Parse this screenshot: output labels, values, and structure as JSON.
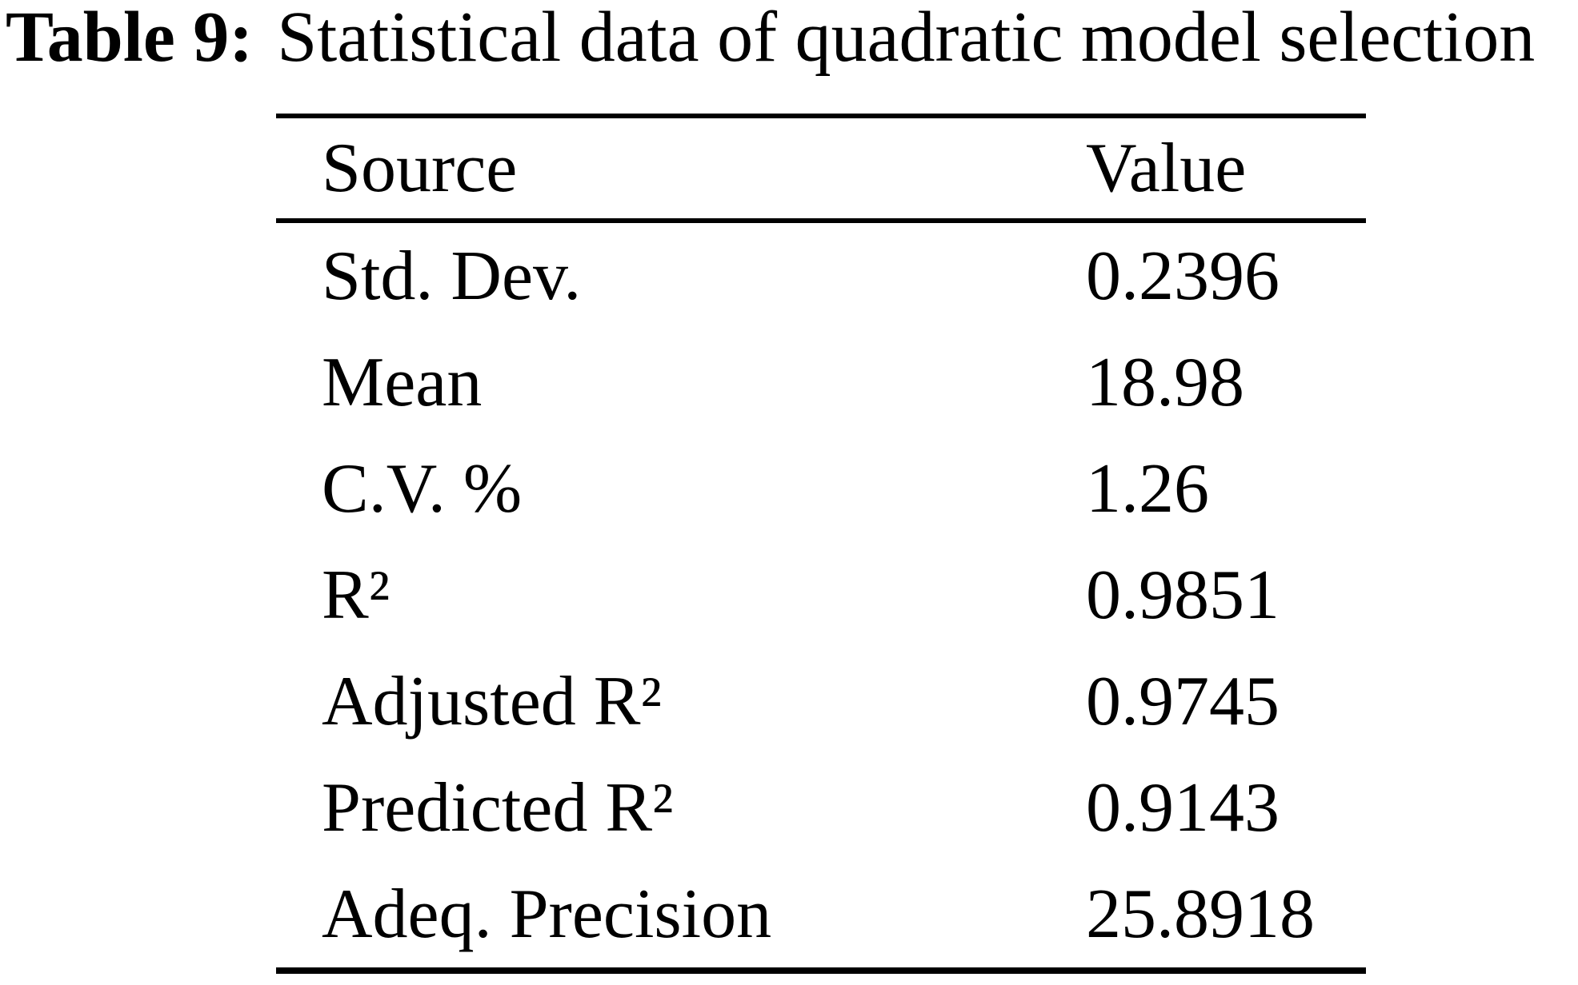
{
  "title": {
    "label": "Table 9:",
    "text": "Statistical data of quadratic model selection"
  },
  "table": {
    "columns": [
      "Source",
      "Value"
    ],
    "rows": [
      {
        "source": "Std. Dev.",
        "value": "0.2396"
      },
      {
        "source": "Mean",
        "value": "18.98"
      },
      {
        "source": "C.V. %",
        "value": "1.26"
      },
      {
        "source": "R²",
        "value": "0.9851"
      },
      {
        "source": "Adjusted R²",
        "value": "0.9745"
      },
      {
        "source": "Predicted R²",
        "value": "0.9143"
      },
      {
        "source": "Adeq. Precision",
        "value": "25.8918"
      }
    ]
  },
  "colors": {
    "text": "#000000",
    "background": "#ffffff",
    "rule": "#000000"
  }
}
